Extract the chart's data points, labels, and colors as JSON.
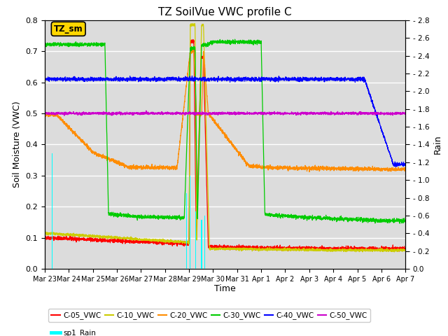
{
  "title": "TZ SoilVue VWC profile C",
  "xlabel": "Time",
  "ylabel_left": "Soil Moisture (VWC)",
  "ylabel_right": "Rain",
  "ylim_left": [
    0.0,
    0.8
  ],
  "ylim_right": [
    0.0,
    2.8
  ],
  "x_tick_labels": [
    "Mar 23",
    "Mar 24",
    "Mar 25",
    "Mar 26",
    "Mar 27",
    "Mar 28",
    "Mar 29",
    "Mar 30",
    "Mar 31",
    "Apr 1",
    "Apr 2",
    "Apr 3",
    "Apr 4",
    "Apr 5",
    "Apr 6",
    "Apr 7"
  ],
  "annotation_box": "TZ_sm",
  "annotation_box_color": "#FFD700",
  "bg_color": "#DCDCDC",
  "colors": {
    "C05": "#FF0000",
    "C10": "#CCCC00",
    "C20": "#FF8C00",
    "C30": "#00CC00",
    "C40": "#0000FF",
    "C50": "#CC00CC",
    "Rain": "#00FFFF"
  }
}
